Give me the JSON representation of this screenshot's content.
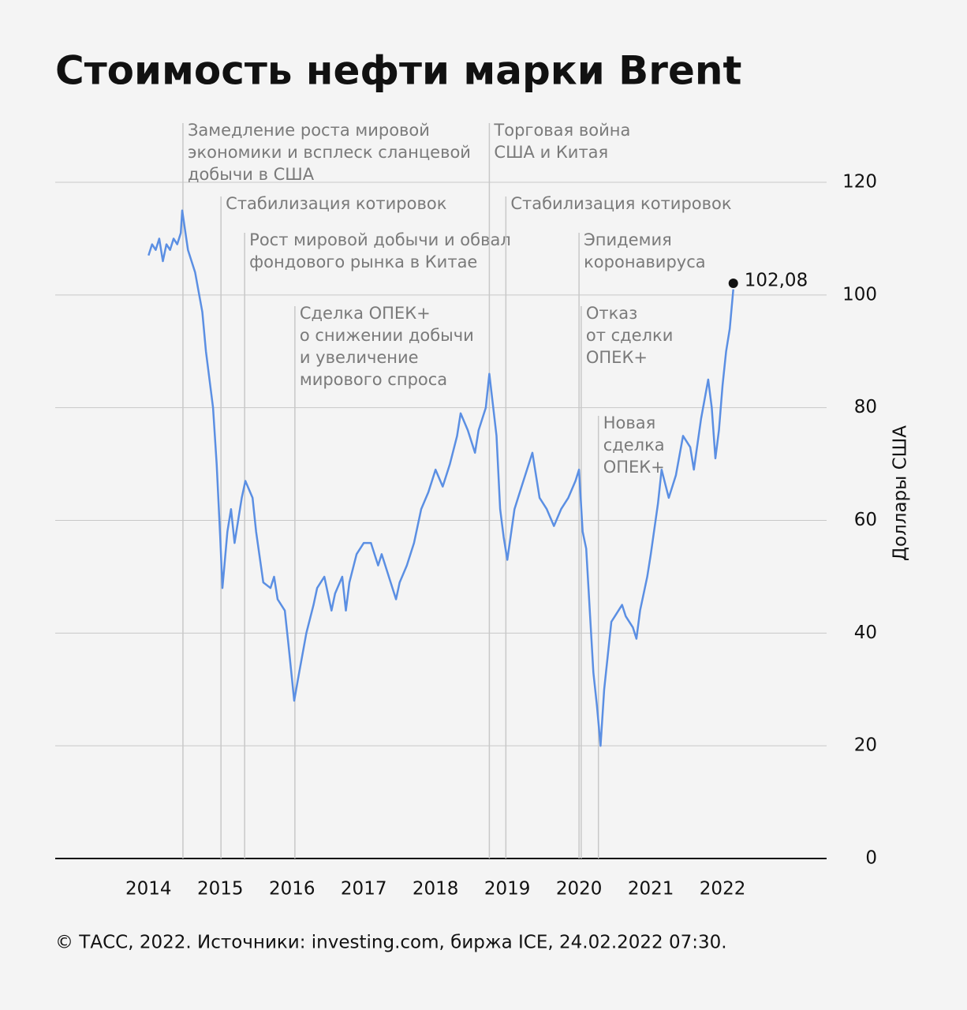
{
  "chart_data": {
    "type": "line",
    "title": "Стоимость нефти марки Brent",
    "ylabel": "Доллары США",
    "footer": "© ТАСС, 2022. Источники: investing.com, биржа ICE, 24.02.2022 07:30.",
    "color": "#5b8fe3",
    "xlim": [
      2012.7,
      2023.45
    ],
    "ylim": [
      0,
      120
    ],
    "xticks": [
      2014,
      2015,
      2016,
      2017,
      2018,
      2019,
      2020,
      2021,
      2022
    ],
    "yticks": [
      0,
      20,
      40,
      60,
      80,
      100,
      120
    ],
    "grid": true,
    "x": [
      2014.0,
      2014.05,
      2014.1,
      2014.15,
      2014.2,
      2014.25,
      2014.3,
      2014.35,
      2014.4,
      2014.45,
      2014.47,
      2014.55,
      2014.65,
      2014.75,
      2014.8,
      2014.85,
      2014.9,
      2014.95,
      2015.0,
      2015.03,
      2015.1,
      2015.15,
      2015.2,
      2015.3,
      2015.35,
      2015.45,
      2015.5,
      2015.6,
      2015.7,
      2015.75,
      2015.8,
      2015.9,
      2015.95,
      2016.03,
      2016.1,
      2016.2,
      2016.3,
      2016.35,
      2016.45,
      2016.55,
      2016.6,
      2016.7,
      2016.75,
      2016.8,
      2016.9,
      2017.0,
      2017.1,
      2017.2,
      2017.25,
      2017.35,
      2017.45,
      2017.5,
      2017.6,
      2017.7,
      2017.8,
      2017.9,
      2018.0,
      2018.1,
      2018.2,
      2018.3,
      2018.35,
      2018.45,
      2018.55,
      2018.6,
      2018.7,
      2018.75,
      2018.85,
      2018.9,
      2018.95,
      2019.0,
      2019.1,
      2019.2,
      2019.3,
      2019.35,
      2019.45,
      2019.55,
      2019.65,
      2019.75,
      2019.85,
      2019.95,
      2020.0,
      2020.05,
      2020.1,
      2020.2,
      2020.25,
      2020.3,
      2020.35,
      2020.45,
      2020.5,
      2020.6,
      2020.65,
      2020.75,
      2020.8,
      2020.85,
      2020.95,
      2021.0,
      2021.1,
      2021.15,
      2021.25,
      2021.35,
      2021.45,
      2021.55,
      2021.6,
      2021.7,
      2021.8,
      2021.85,
      2021.9,
      2021.95,
      2022.0,
      2022.05,
      2022.1,
      2022.15
    ],
    "values": [
      107,
      109,
      108,
      110,
      106,
      109,
      108,
      110,
      109,
      111,
      115,
      108,
      104,
      97,
      90,
      85,
      80,
      70,
      57,
      48,
      58,
      62,
      56,
      64,
      67,
      64,
      58,
      49,
      48,
      50,
      46,
      44,
      38,
      28,
      33,
      40,
      45,
      48,
      50,
      44,
      47,
      50,
      44,
      49,
      54,
      56,
      56,
      52,
      54,
      50,
      46,
      49,
      52,
      56,
      62,
      65,
      69,
      66,
      70,
      75,
      79,
      76,
      72,
      76,
      80,
      86,
      75,
      62,
      57,
      53,
      62,
      66,
      70,
      72,
      64,
      62,
      59,
      62,
      64,
      67,
      69,
      58,
      55,
      33,
      27,
      20,
      30,
      42,
      43,
      45,
      43,
      41,
      39,
      44,
      50,
      54,
      63,
      69,
      64,
      68,
      75,
      73,
      69,
      78,
      85,
      80,
      71,
      76,
      84,
      90,
      94,
      101
    ],
    "marker": {
      "x": 2022.15,
      "value": 102.08,
      "label": "102,08"
    },
    "annotations": [
      {
        "x": 2014.48,
        "lines": [
          "Замедление роста мировой",
          "экономики и всплеск сланцевой",
          "добычи в США"
        ]
      },
      {
        "x": 2015.01,
        "lines": [
          "Стабилизация котировок"
        ]
      },
      {
        "x": 2015.34,
        "lines": [
          "Рост мировой добычи и обвал",
          "фондового рынка в Китае"
        ]
      },
      {
        "x": 2016.04,
        "lines": [
          "Сделка ОПЕК+",
          "о снижении добычи",
          "и увеличение",
          "мирового спроса"
        ]
      },
      {
        "x": 2018.75,
        "lines": [
          "Торговая война",
          "США и Китая"
        ]
      },
      {
        "x": 2018.98,
        "lines": [
          "Стабилизация котировок"
        ]
      },
      {
        "x": 2020.0,
        "lines": [
          "Эпидемия",
          "коронавируса"
        ]
      },
      {
        "x": 2020.03,
        "lines": [
          "Отказ",
          "от сделки",
          "ОПЕК+"
        ]
      },
      {
        "x": 2020.27,
        "lines": [
          "Новая",
          "сделка",
          "ОПЕК+"
        ]
      }
    ]
  }
}
